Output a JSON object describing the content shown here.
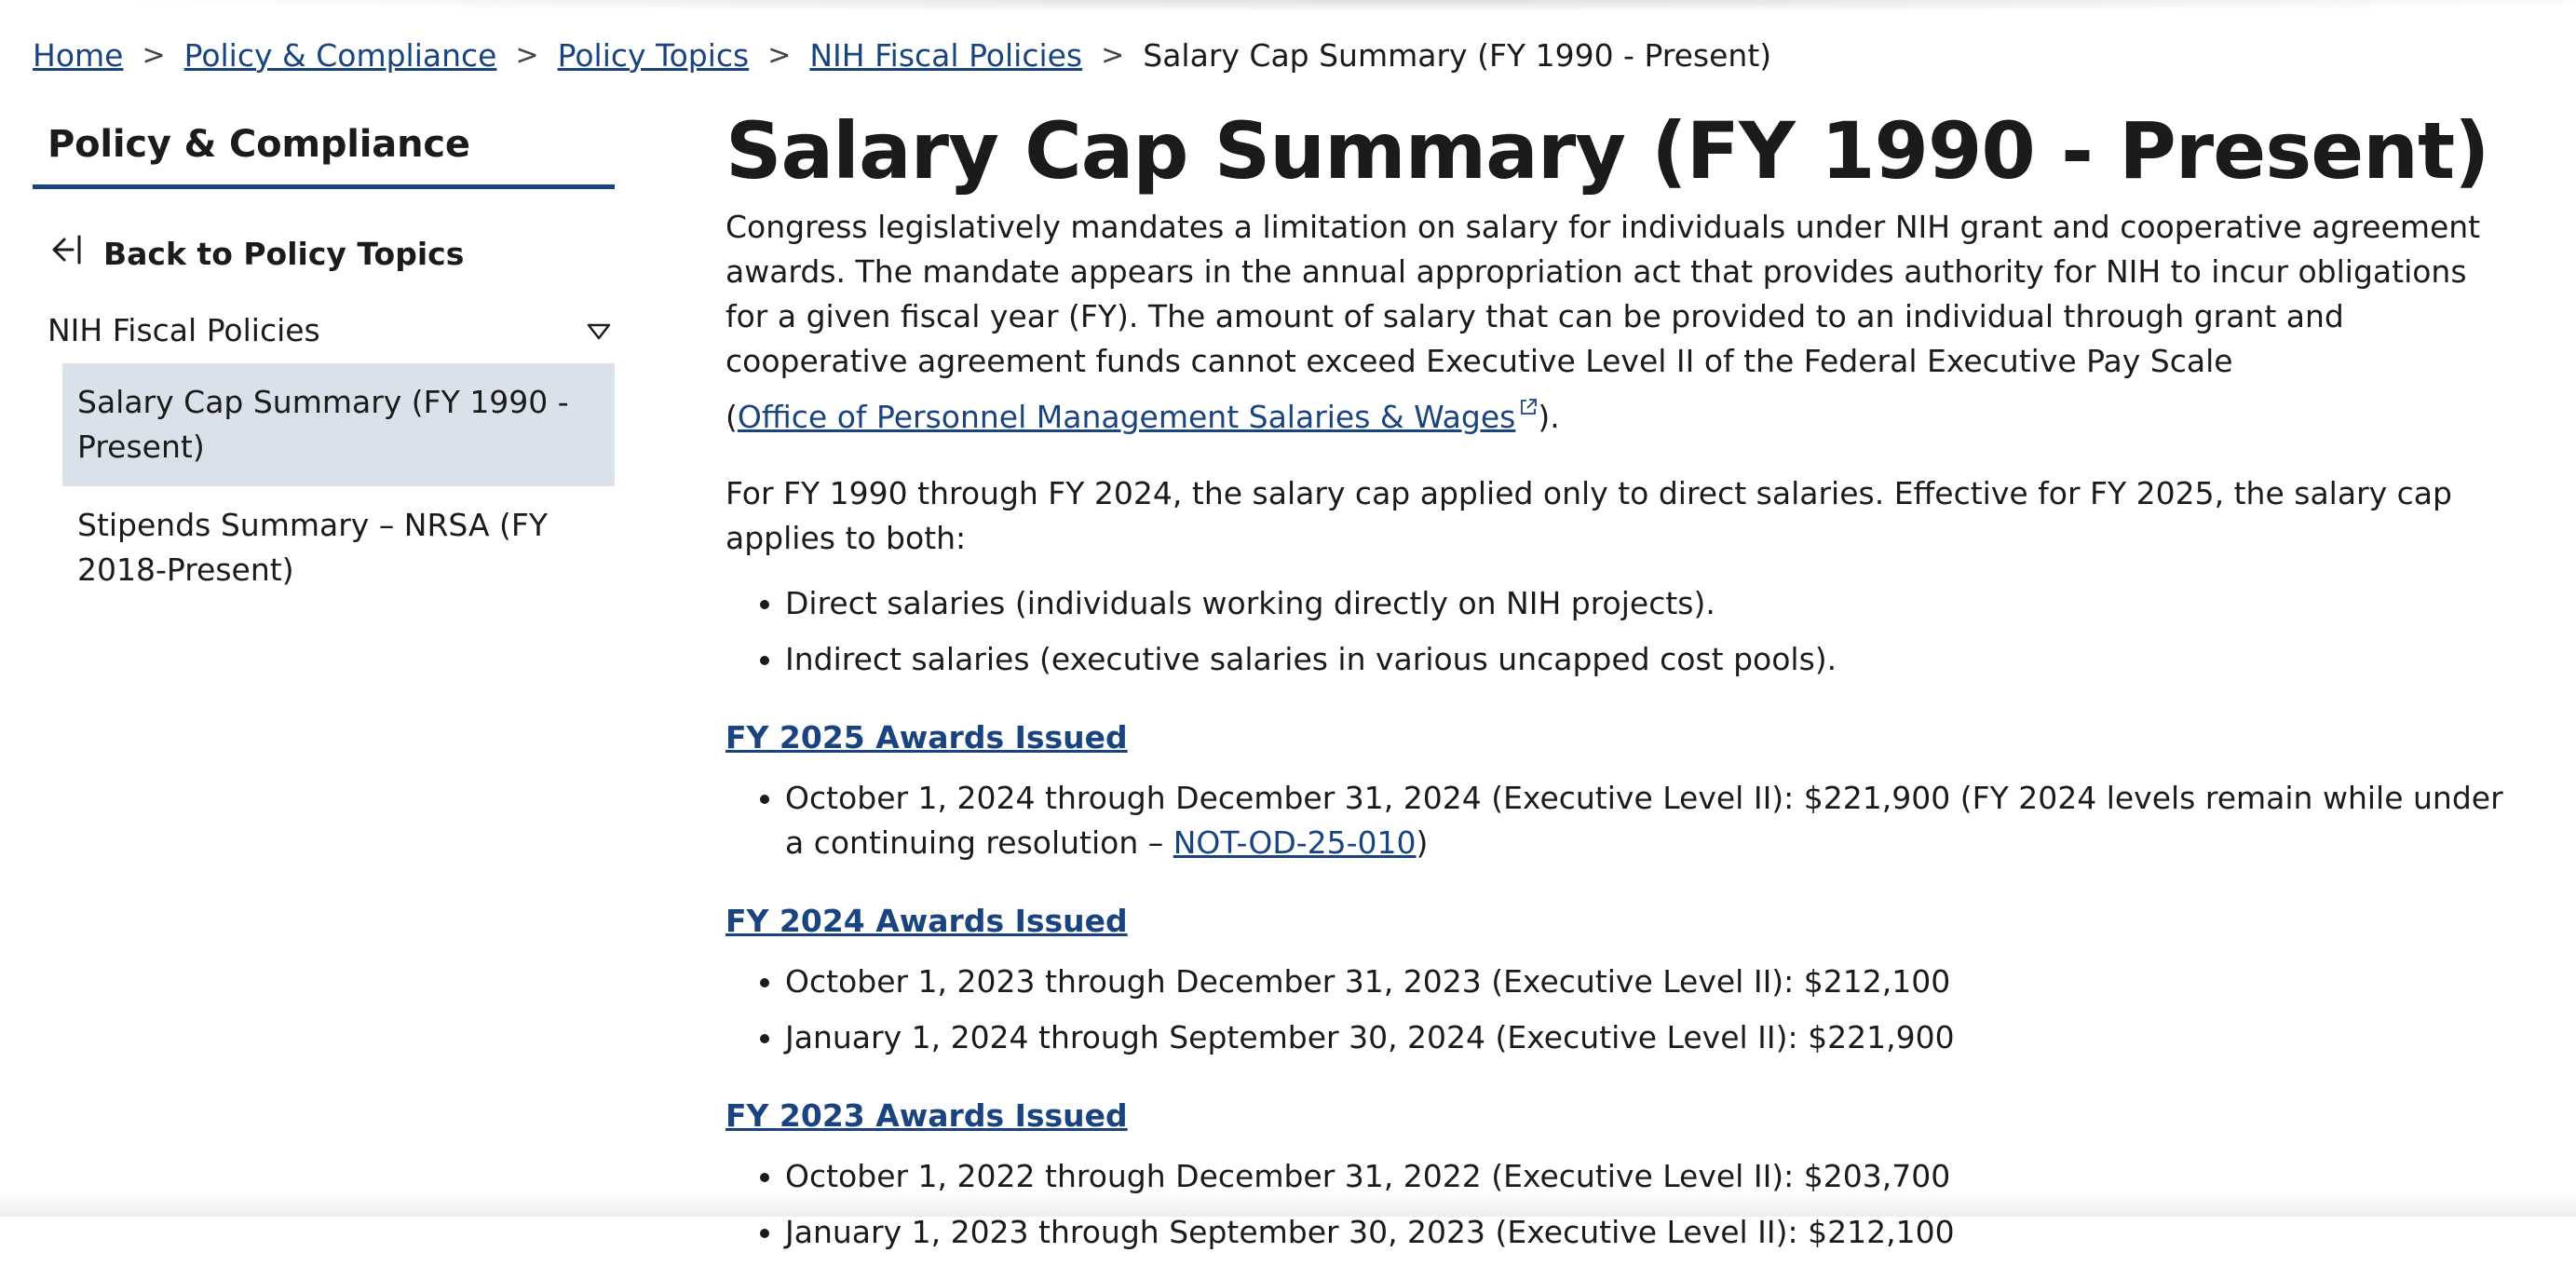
{
  "breadcrumb": {
    "items": [
      "Home",
      "Policy & Compliance",
      "Policy Topics",
      "NIH Fiscal Policies"
    ],
    "separator": ">",
    "current": "Salary Cap Summary (FY 1990 - Present)"
  },
  "sidebar": {
    "title": "Policy & Compliance",
    "back_label": "Back to Policy Topics",
    "section_label": "NIH Fiscal Policies",
    "items": [
      {
        "label": "Salary Cap Summary (FY 1990 - Present)",
        "active": true
      },
      {
        "label": "Stipends Summary – NRSA (FY 2018-Present)",
        "active": false
      }
    ]
  },
  "main": {
    "title": "Salary Cap Summary (FY 1990 - Present)",
    "intro": "Congress legislatively mandates a limitation on salary for individuals under NIH grant and cooperative agreement awards. The mandate appears in the annual appropriation act that provides authority for NIH to incur obligations for a given fiscal year (FY). The amount of salary that can be provided to an individual through grant and cooperative agreement funds cannot exceed Executive Level II of the Federal Executive Pay Scale (",
    "intro_link": "Office of Personnel Management Salaries & Wages",
    "intro_end": ").",
    "cap_text": "For FY 1990 through FY 2024, the salary cap applied only to direct salaries. Effective for FY 2025, the salary cap applies to both:",
    "cap_bullets": [
      "Direct salaries (individuals working directly on NIH projects).",
      "Indirect salaries (executive salaries in various uncapped cost pools)."
    ],
    "fy2025": {
      "heading": "FY 2025 Awards Issued",
      "item_text": "October 1, 2024 through December 31, 2024 (Executive Level II): $221,900 (FY 2024 levels remain while under a continuing resolution – ",
      "item_link": "NOT-OD-25-010",
      "item_end": ")"
    },
    "fy2024": {
      "heading": "FY 2024 Awards Issued",
      "items": [
        "October 1, 2023 through December 31, 2023 (Executive Level II): $212,100",
        "January 1, 2024 through September 30, 2024 (Executive Level II): $221,900"
      ]
    },
    "fy2023": {
      "heading": "FY 2023 Awards Issued",
      "items": [
        "October 1, 2022 through December 31, 2022 (Executive Level II): $203,700",
        "January 1, 2023 through September 30, 2023 (Executive Level II): $212,100"
      ]
    }
  },
  "icons": {
    "back": "arrow-left-bar-icon",
    "expand": "triangle-down-icon",
    "external": "external-link-icon"
  },
  "colors": {
    "link": "#1a4480",
    "active_bg": "#d9e1ea",
    "title_border": "#1a4480"
  }
}
